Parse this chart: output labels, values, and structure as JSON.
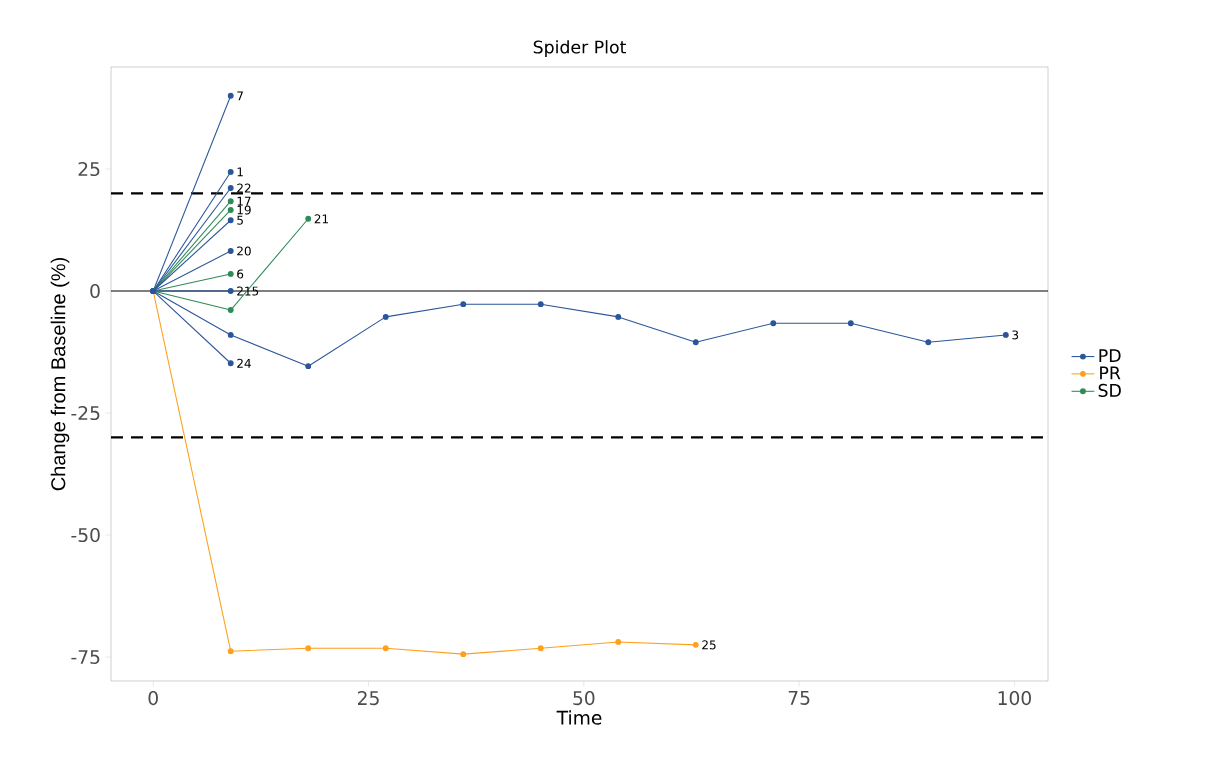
{
  "chart_data": {
    "type": "line",
    "title": "Spider Plot",
    "xlabel": "Time",
    "ylabel": "Change from Baseline (%)",
    "xlim": [
      -4.9,
      103.9
    ],
    "ylim": [
      -79.9,
      45.9
    ],
    "xticks": [
      0,
      25,
      50,
      75,
      100
    ],
    "yticks": [
      -75,
      -50,
      -25,
      0,
      25
    ],
    "legend": "right",
    "marker": "circle",
    "line_style": "solid",
    "series": [
      {
        "name": "PD",
        "color": "#2a5699",
        "x": [
          0,
          9
        ],
        "values": [
          0,
          40
        ]
      },
      {
        "name": "PR",
        "color": "#ffa01c",
        "x": [
          0,
          9,
          18,
          27,
          36,
          45,
          54,
          63
        ],
        "values": [
          0,
          -73.8,
          -73.2,
          -73.2,
          -74.4,
          -73.2,
          -71.9,
          -72.5
        ]
      },
      {
        "name": "SD",
        "color": "#2e8b57",
        "x": [
          0,
          9
        ],
        "values": [
          0,
          18.4
        ]
      },
      {
        "color": "#2a5699",
        "x": [
          0,
          9
        ],
        "values": [
          0,
          24.4
        ]
      },
      {
        "color": "#2a5699",
        "x": [
          0,
          9
        ],
        "values": [
          0,
          21.1
        ]
      },
      {
        "color": "#2e8b57",
        "x": [
          0,
          9
        ],
        "values": [
          0,
          16.6
        ]
      },
      {
        "color": "#2a5699",
        "x": [
          0,
          9
        ],
        "values": [
          0,
          14.5
        ]
      },
      {
        "color": "#2a5699",
        "x": [
          0,
          9
        ],
        "values": [
          0,
          8.2
        ]
      },
      {
        "color": "#2e8b57",
        "x": [
          0,
          9
        ],
        "values": [
          0,
          3.5
        ]
      },
      {
        "color": "#2a5699",
        "x": [
          0,
          9
        ],
        "values": [
          0,
          0
        ]
      },
      {
        "color": "#2e8b57",
        "x": [
          0,
          9,
          18
        ],
        "values": [
          0,
          -3.9,
          14.8
        ]
      },
      {
        "color": "#2a5699",
        "x": [
          0,
          9,
          18,
          27,
          36,
          45,
          54,
          63,
          72,
          81,
          90,
          99
        ],
        "values": [
          0,
          -9.0,
          -15.4,
          -5.3,
          -2.7,
          -2.7,
          -5.3,
          -10.5,
          -6.6,
          -6.6,
          -10.5,
          -9.0
        ]
      },
      {
        "color": "#2a5699",
        "x": [
          0,
          9
        ],
        "values": [
          0,
          -14.8
        ]
      }
    ],
    "ref_lines": [
      {
        "axis": "y",
        "value": 20,
        "color": "#000000",
        "line_style": "dashed"
      },
      {
        "axis": "y",
        "value": -30,
        "color": "#000000",
        "line_style": "dashed"
      },
      {
        "axis": "y",
        "value": 0,
        "color": "#000000",
        "line_style": "solid"
      }
    ],
    "annotations": [
      {
        "text": "7",
        "x": 9,
        "y": 40
      },
      {
        "text": "1",
        "x": 9,
        "y": 24.4
      },
      {
        "text": "22",
        "x": 9,
        "y": 21.1
      },
      {
        "text": "17",
        "x": 9,
        "y": 18.4
      },
      {
        "text": "19",
        "x": 9,
        "y": 16.6
      },
      {
        "text": "5",
        "x": 9,
        "y": 14.5
      },
      {
        "text": "20",
        "x": 9,
        "y": 8.2
      },
      {
        "text": "6",
        "x": 9,
        "y": 3.5
      },
      {
        "text": "215",
        "x": 9,
        "y": 0
      },
      {
        "text": "21",
        "x": 18,
        "y": 14.8
      },
      {
        "text": "3",
        "x": 99,
        "y": -9.0
      },
      {
        "text": "24",
        "x": 9,
        "y": -14.8
      },
      {
        "text": "25",
        "x": 63,
        "y": -72.5
      }
    ]
  }
}
